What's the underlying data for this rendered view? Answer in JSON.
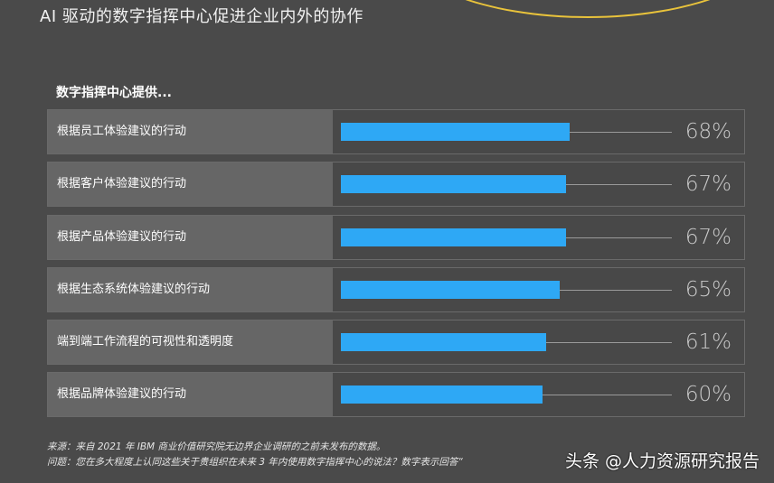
{
  "title": "AI 驱动的数字指挥中心促进企业内外的协作",
  "section_label": "数字指挥中心提供...",
  "chart_data": {
    "type": "bar",
    "orientation": "horizontal",
    "categories": [
      "根据员工体验建议的行动",
      "根据客户体验建议的行动",
      "根据产品体验建议的行动",
      "根据生态系统体验建议的行动",
      "端到端工作流程的可视性和透明度",
      "根据品牌体验建议的行动"
    ],
    "values": [
      68,
      67,
      67,
      65,
      61,
      60
    ],
    "value_labels": [
      "68%",
      "67%",
      "67%",
      "65%",
      "61%",
      "60%"
    ],
    "xlim": [
      0,
      100
    ],
    "bar_color": "#2ea8f5"
  },
  "footnotes": {
    "source": "来源：来自 2021 年 IBM 商业价值研究院无边界企业调研的之前未发布的数据。",
    "question": "问题：您在多大程度上认同这些关于贵组织在未来 3 年内使用数字指挥中心的说法？数字表示回答“"
  },
  "watermark": "头条 @人力资源研究报告",
  "colors": {
    "background": "#4a4a4a",
    "label_panel": "#666666",
    "bar": "#2ea8f5",
    "accent_arc": "#e9c33b"
  }
}
